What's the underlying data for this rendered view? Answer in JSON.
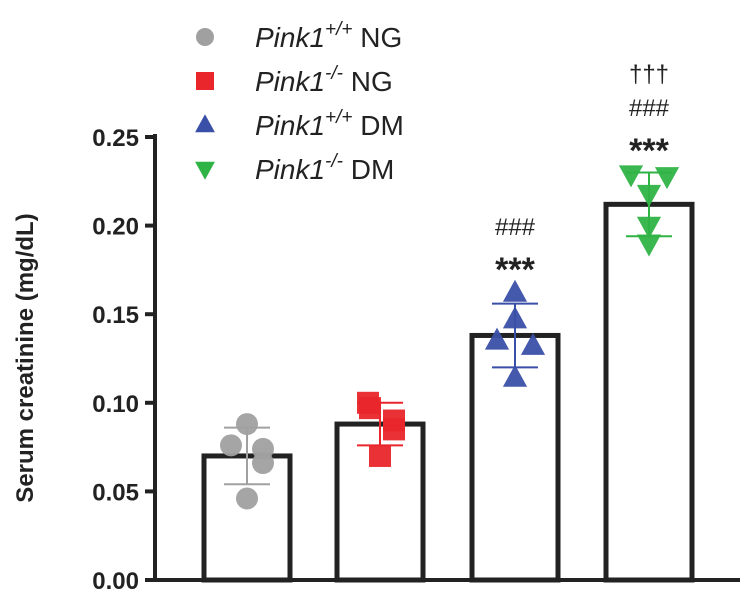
{
  "chart_data": {
    "type": "bar",
    "ylabel": "Serum creatinine (mg/dL)",
    "ylim": [
      0,
      0.25
    ],
    "yticks": [
      "0.00",
      "0.05",
      "0.10",
      "0.15",
      "0.20",
      "0.25"
    ],
    "grid": false,
    "legend_placement": "top-left",
    "series": [
      {
        "gene": "Pink1",
        "sup": "+/+",
        "cond": "NG",
        "marker": "circle",
        "color": "#a0a0a0",
        "mean": 0.07,
        "sd": 0.016,
        "points": [
          0.088,
          0.076,
          0.074,
          0.066,
          0.046
        ],
        "annot": []
      },
      {
        "gene": "Pink1",
        "sup": "-/-",
        "cond": "NG",
        "marker": "square",
        "color": "#e8262b",
        "mean": 0.088,
        "sd": 0.012,
        "points": [
          0.1,
          0.097,
          0.09,
          0.085,
          0.07
        ],
        "annot": []
      },
      {
        "gene": "Pink1",
        "sup": "+/+",
        "cond": "DM",
        "marker": "triangle-up",
        "color": "#3a4fa8",
        "mean": 0.138,
        "sd": 0.018,
        "points": [
          0.162,
          0.147,
          0.135,
          0.132,
          0.114
        ],
        "annot": [
          "###",
          "***"
        ]
      },
      {
        "gene": "Pink1",
        "sup": "-/-",
        "cond": "DM",
        "marker": "triangle-down",
        "color": "#2fb344",
        "mean": 0.212,
        "sd": 0.018,
        "points": [
          0.229,
          0.228,
          0.218,
          0.2,
          0.19
        ],
        "annot": [
          "†††",
          "###",
          "***"
        ]
      }
    ]
  }
}
